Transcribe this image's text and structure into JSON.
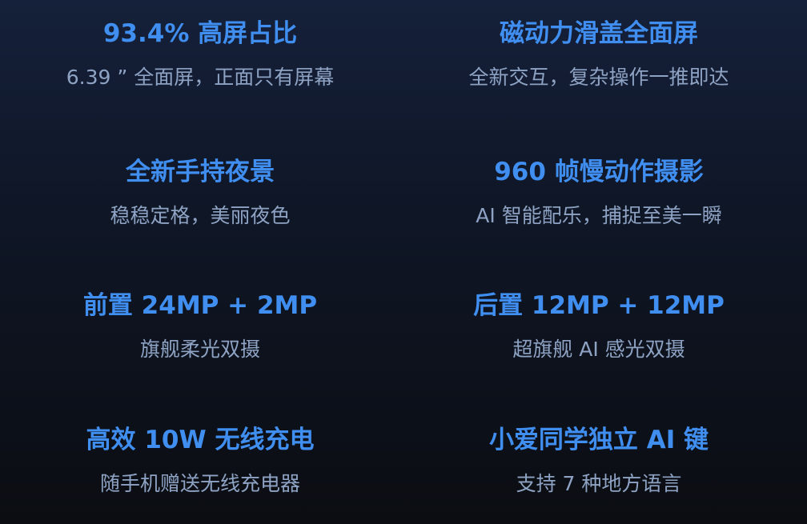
{
  "features": [
    {
      "title": "93.4% 高屏占比",
      "subtitle": "6.39 ” 全面屏，正面只有屏幕"
    },
    {
      "title": "磁动力滑盖全面屏",
      "subtitle": "全新交互，复杂操作一推即达"
    },
    {
      "title": "全新手持夜景",
      "subtitle": "稳稳定格，美丽夜色"
    },
    {
      "title": "960 帧慢动作摄影",
      "subtitle": "AI 智能配乐，捕捉至美一瞬"
    },
    {
      "title": "前置 24MP + 2MP",
      "subtitle": "旗舰柔光双摄"
    },
    {
      "title": "后置 12MP + 12MP",
      "subtitle": "超旗舰 AI 感光双摄"
    },
    {
      "title": "高效 10W 无线充电",
      "subtitle": "随手机赠送无线充电器"
    },
    {
      "title": "小爱同学独立 AI 键",
      "subtitle": "支持 7 种地方语言"
    }
  ],
  "colors": {
    "title": "#3f8ef0",
    "subtitle": "#8ea3c4",
    "background": "#0f1626"
  }
}
